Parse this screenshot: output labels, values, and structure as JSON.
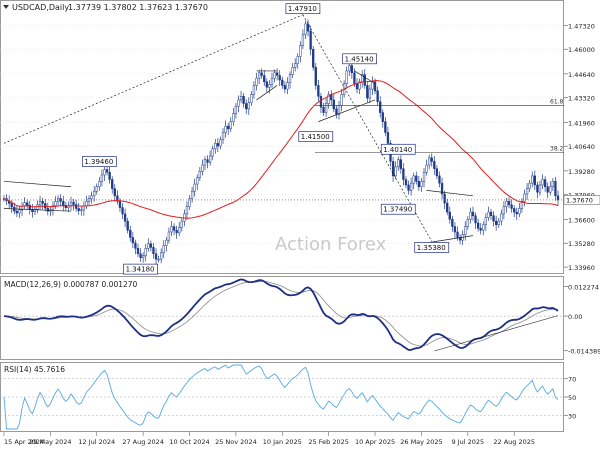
{
  "header": {
    "symbol": "USDCAD,Daily",
    "ohlc": "1.37739 1.37802 1.37623 1.37670"
  },
  "watermark": "Action Forex",
  "colors": {
    "up": "#1f3a8a",
    "down": "#1f3a8a",
    "wick": "#1f3a8a",
    "ma": "#e51c1c",
    "macd": "#1f2f86",
    "signal": "#8a8a8a",
    "rsi": "#55a8e6",
    "label_border": "#1f2f86",
    "axis_text": "#222222",
    "grid": "#d8d8d8",
    "watermark": "#c9c9c9"
  },
  "chart_data": [
    {
      "type": "candlestick",
      "panel": "price",
      "ylim": [
        1.338,
        1.485
      ],
      "x_tick_labels": [
        "15 Apr 2024",
        "29 May 2024",
        "12 Jul 2024",
        "27 Aug 2024",
        "10 Oct 2024",
        "25 Nov 2024",
        "10 Jan 2025",
        "25 Feb 2025",
        "10 Apr 2025",
        "26 May 2025",
        "9 Jul 2025",
        "22 Aug 2025"
      ],
      "y_ticks": [
        1.4732,
        1.46,
        1.4464,
        1.4332,
        1.4196,
        1.4064,
        1.3928,
        1.3796,
        1.366,
        1.3528,
        1.3396
      ],
      "y_tick_labels": [
        "1.47320",
        "1.46000",
        "1.44640",
        "1.43320",
        "1.41960",
        "1.40640",
        "1.39280",
        "1.37960",
        "1.36600",
        "1.35280",
        "1.33960"
      ],
      "last_price": 1.3767,
      "last_price_label": "1.37670",
      "closes": [
        1.3775,
        1.3762,
        1.3748,
        1.3728,
        1.3705,
        1.3695,
        1.3712,
        1.3733,
        1.3752,
        1.3738,
        1.3715,
        1.3702,
        1.3716,
        1.374,
        1.376,
        1.3748,
        1.3722,
        1.3705,
        1.3714,
        1.3736,
        1.3758,
        1.3775,
        1.376,
        1.3738,
        1.3724,
        1.3735,
        1.3755,
        1.3742,
        1.372,
        1.3708,
        1.3712,
        1.3735,
        1.376,
        1.3775,
        1.379,
        1.3815,
        1.384,
        1.387,
        1.3905,
        1.3935,
        1.392,
        1.388,
        1.383,
        1.379,
        1.376,
        1.3725,
        1.369,
        1.365,
        1.36,
        1.356,
        1.353,
        1.35,
        1.347,
        1.3448,
        1.346,
        1.35,
        1.3525,
        1.3505,
        1.347,
        1.344,
        1.344,
        1.3475,
        1.3515,
        1.3545,
        1.359,
        1.362,
        1.36,
        1.3585,
        1.3615,
        1.365,
        1.369,
        1.373,
        1.3775,
        1.3815,
        1.3855,
        1.389,
        1.3925,
        1.396,
        1.399,
        1.3975,
        1.401,
        1.405,
        1.408,
        1.4065,
        1.41,
        1.414,
        1.4175,
        1.416,
        1.42,
        1.4245,
        1.4285,
        1.432,
        1.434,
        1.43,
        1.427,
        1.4305,
        1.435,
        1.44,
        1.444,
        1.447,
        1.4455,
        1.442,
        1.439,
        1.4405,
        1.444,
        1.447,
        1.4455,
        1.443,
        1.44,
        1.438,
        1.4415,
        1.446,
        1.45,
        1.452,
        1.456,
        1.462,
        1.468,
        1.474,
        1.47,
        1.46,
        1.45,
        1.44,
        1.434,
        1.428,
        1.425,
        1.43,
        1.435,
        1.432,
        1.427,
        1.424,
        1.429,
        1.435,
        1.441,
        1.448,
        1.451,
        1.447,
        1.441,
        1.438,
        1.442,
        1.446,
        1.44,
        1.433,
        1.438,
        1.442,
        1.437,
        1.431,
        1.425,
        1.42,
        1.414,
        1.408,
        1.398,
        1.39,
        1.395,
        1.399,
        1.394,
        1.388,
        1.385,
        1.382,
        1.386,
        1.39,
        1.387,
        1.384,
        1.387,
        1.392,
        1.396,
        1.4,
        1.398,
        1.394,
        1.39,
        1.386,
        1.38,
        1.375,
        1.37,
        1.366,
        1.362,
        1.359,
        1.356,
        1.3545,
        1.3575,
        1.362,
        1.366,
        1.37,
        1.368,
        1.364,
        1.361,
        1.36,
        1.363,
        1.367,
        1.37,
        1.368,
        1.365,
        1.363,
        1.365,
        1.369,
        1.373,
        1.376,
        1.374,
        1.372,
        1.37,
        1.369,
        1.372,
        1.376,
        1.38,
        1.383,
        1.386,
        1.39,
        1.385,
        1.381,
        1.385,
        1.388,
        1.384,
        1.381,
        1.384,
        1.387,
        1.379,
        1.3767
      ],
      "ma_period": 50,
      "labels": [
        {
          "text": "1.47910",
          "value": 1.4791,
          "bar": 116
        },
        {
          "text": "1.39460",
          "value": 1.3946,
          "bar": 37
        },
        {
          "text": "1.34180",
          "value": 1.3418,
          "bar": 53
        },
        {
          "text": "1.45140",
          "value": 1.4514,
          "bar": 138
        },
        {
          "text": "1.41500",
          "value": 1.415,
          "bar": 121
        },
        {
          "text": "1.40140",
          "value": 1.4014,
          "bar": 153
        },
        {
          "text": "1.37490",
          "value": 1.3749,
          "bar": 153
        },
        {
          "text": "1.35380",
          "value": 1.3538,
          "bar": 166
        }
      ],
      "fib_levels": [
        {
          "label": "61.8",
          "value": 1.429
        },
        {
          "label": "38.2",
          "value": 1.403
        }
      ]
    },
    {
      "type": "line",
      "panel": "macd",
      "title": "MACD(12,26,9) 0.000787 0.001270",
      "ylim": [
        -0.017,
        0.015
      ],
      "y_ticks": [
        0.012274,
        0.0,
        -0.014389
      ],
      "y_tick_labels": [
        "0.012274",
        "0.00",
        "-0.014389"
      ]
    },
    {
      "type": "line",
      "panel": "rsi",
      "title": "RSI(14) 45.7616",
      "ylim": [
        15,
        85
      ],
      "y_ticks": [
        70,
        50,
        30
      ],
      "y_tick_labels": [
        "70",
        "50",
        "30"
      ]
    }
  ]
}
